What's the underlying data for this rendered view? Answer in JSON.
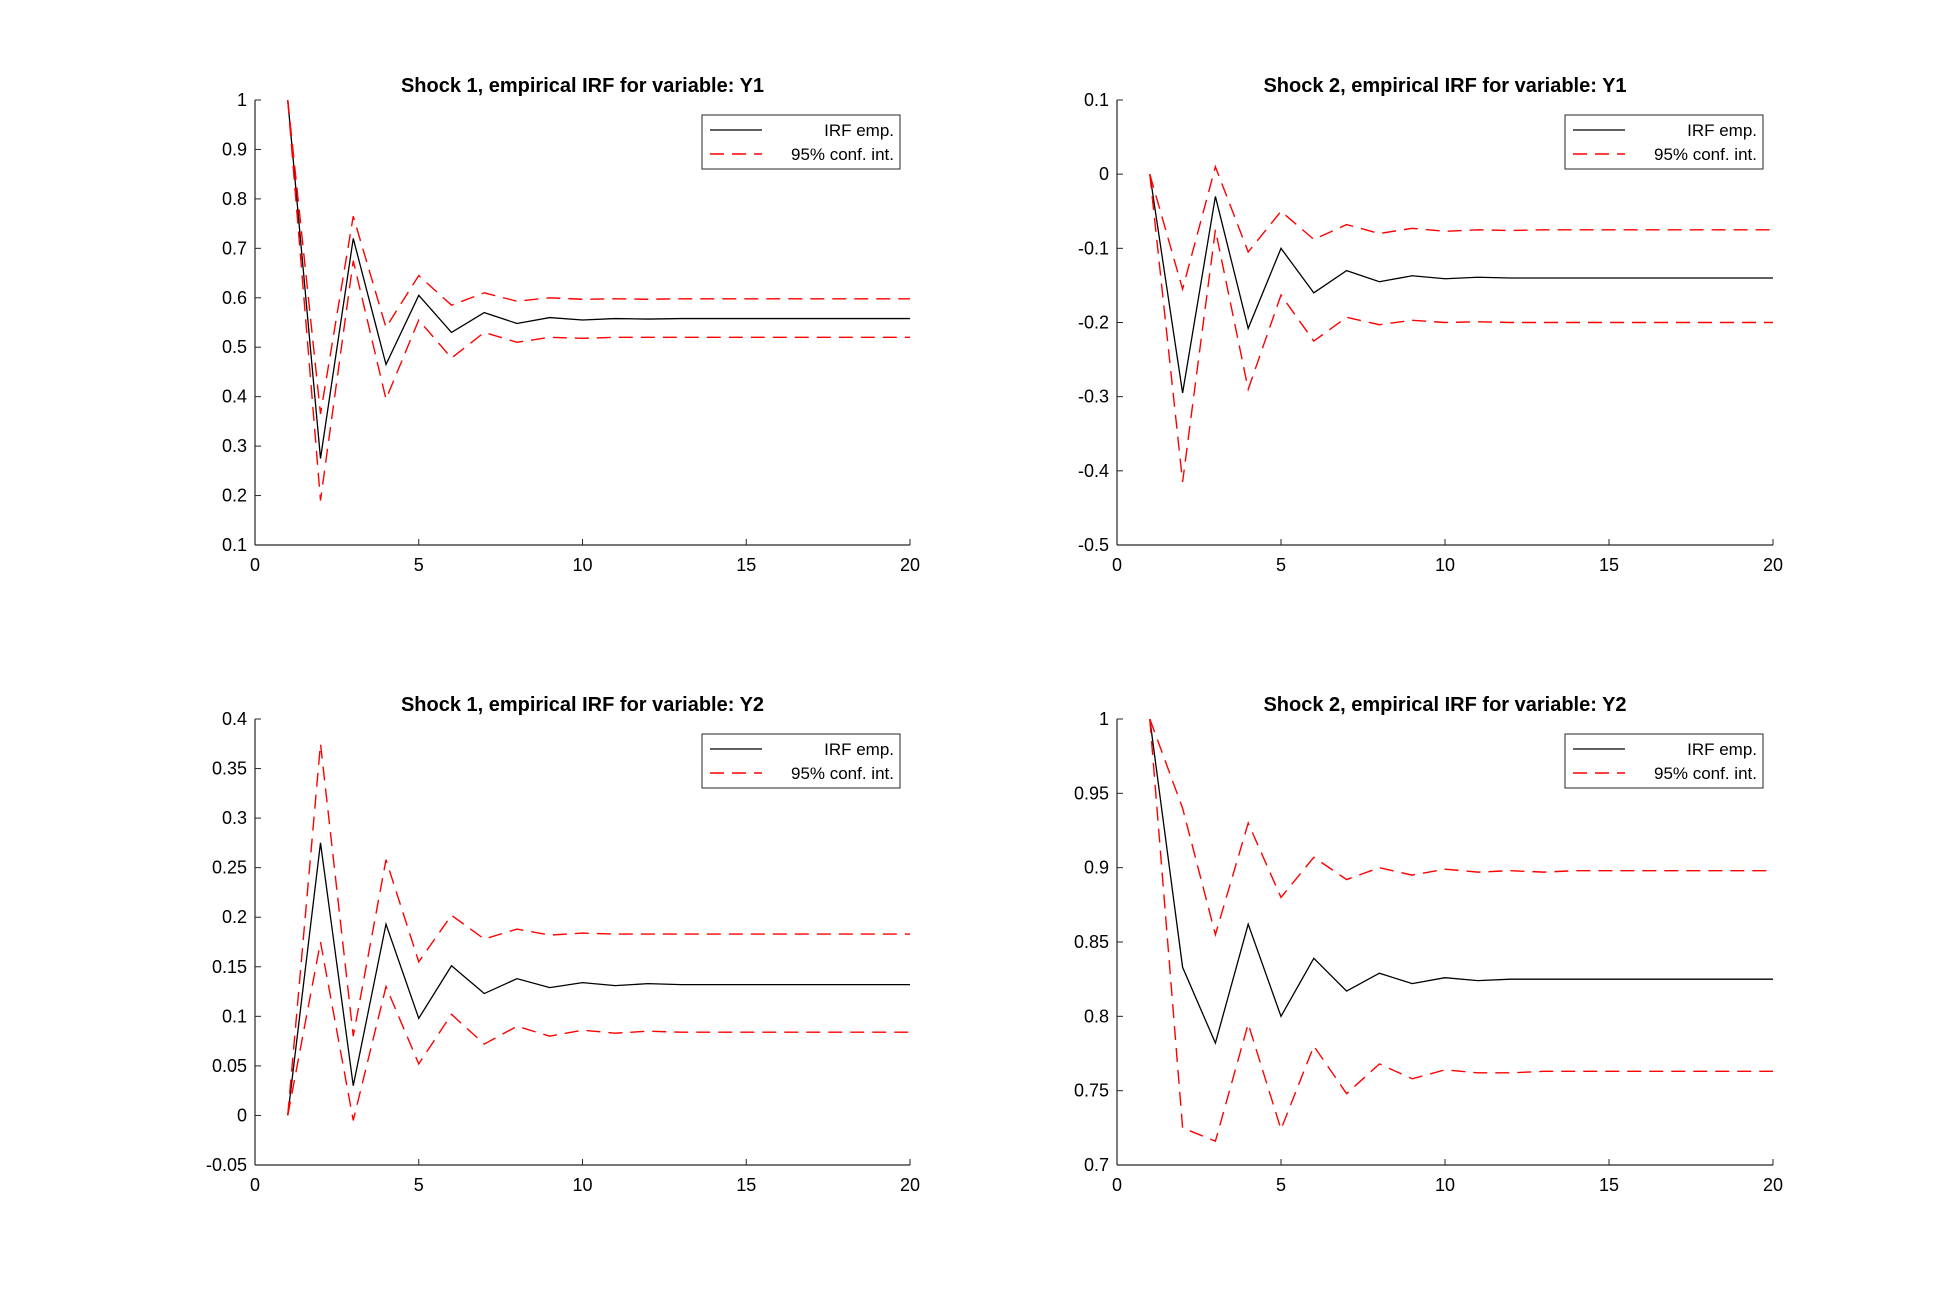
{
  "chart_data": [
    {
      "type": "line",
      "title": "Shock 1, empirical IRF for variable: Y1",
      "xlabel": "",
      "ylabel": "",
      "xlim": [
        0,
        20
      ],
      "ylim": [
        0.1,
        1
      ],
      "x_ticks": [
        "0",
        "5",
        "10",
        "15",
        "20"
      ],
      "y_ticks": [
        "0.1",
        "0.2",
        "0.3",
        "0.4",
        "0.5",
        "0.6",
        "0.7",
        "0.8",
        "0.9",
        "1"
      ],
      "legend": [
        "IRF emp.",
        "95% conf. int."
      ],
      "legend_position": "top-right",
      "grid": false,
      "x": [
        1,
        2,
        3,
        4,
        5,
        6,
        7,
        8,
        9,
        10,
        11,
        12,
        13,
        14,
        15,
        16,
        17,
        18,
        19,
        20
      ],
      "series": [
        {
          "name": "IRF emp.",
          "style": "solid",
          "color": "#000000",
          "values": [
            1.0,
            0.275,
            0.72,
            0.465,
            0.605,
            0.53,
            0.57,
            0.548,
            0.56,
            0.555,
            0.558,
            0.557,
            0.558,
            0.558,
            0.558,
            0.558,
            0.558,
            0.558,
            0.558,
            0.558
          ]
        },
        {
          "name": "95% conf. int.",
          "style": "dashed",
          "color": "#ff0000",
          "values": [
            1.0,
            0.365,
            0.765,
            0.54,
            0.645,
            0.585,
            0.61,
            0.593,
            0.6,
            0.597,
            0.598,
            0.597,
            0.598,
            0.598,
            0.598,
            0.598,
            0.598,
            0.598,
            0.598,
            0.598
          ]
        },
        {
          "name": "",
          "style": "dashed",
          "color": "#ff0000",
          "values": [
            1.0,
            0.19,
            0.675,
            0.395,
            0.555,
            0.478,
            0.53,
            0.51,
            0.52,
            0.518,
            0.52,
            0.52,
            0.52,
            0.52,
            0.52,
            0.52,
            0.52,
            0.52,
            0.52,
            0.52
          ]
        }
      ]
    },
    {
      "type": "line",
      "title": "Shock 2, empirical IRF for variable: Y1",
      "xlabel": "",
      "ylabel": "",
      "xlim": [
        0,
        20
      ],
      "ylim": [
        -0.5,
        0.1
      ],
      "x_ticks": [
        "0",
        "5",
        "10",
        "15",
        "20"
      ],
      "y_ticks": [
        "-0.5",
        "-0.4",
        "-0.3",
        "-0.2",
        "-0.1",
        "0",
        "0.1"
      ],
      "legend": [
        "IRF emp.",
        "95% conf. int."
      ],
      "legend_position": "top-right",
      "grid": false,
      "x": [
        1,
        2,
        3,
        4,
        5,
        6,
        7,
        8,
        9,
        10,
        11,
        12,
        13,
        14,
        15,
        16,
        17,
        18,
        19,
        20
      ],
      "series": [
        {
          "name": "IRF emp.",
          "style": "solid",
          "color": "#000000",
          "values": [
            0.0,
            -0.295,
            -0.03,
            -0.208,
            -0.1,
            -0.16,
            -0.13,
            -0.145,
            -0.137,
            -0.141,
            -0.139,
            -0.14,
            -0.14,
            -0.14,
            -0.14,
            -0.14,
            -0.14,
            -0.14,
            -0.14,
            -0.14
          ]
        },
        {
          "name": "95% conf. int.",
          "style": "dashed",
          "color": "#ff0000",
          "values": [
            0.0,
            -0.155,
            0.01,
            -0.105,
            -0.05,
            -0.088,
            -0.068,
            -0.08,
            -0.073,
            -0.077,
            -0.075,
            -0.076,
            -0.075,
            -0.075,
            -0.075,
            -0.075,
            -0.075,
            -0.075,
            -0.075,
            -0.075
          ]
        },
        {
          "name": "",
          "style": "dashed",
          "color": "#ff0000",
          "values": [
            0.0,
            -0.415,
            -0.075,
            -0.29,
            -0.163,
            -0.225,
            -0.193,
            -0.203,
            -0.197,
            -0.2,
            -0.199,
            -0.2,
            -0.2,
            -0.2,
            -0.2,
            -0.2,
            -0.2,
            -0.2,
            -0.2,
            -0.2
          ]
        }
      ]
    },
    {
      "type": "line",
      "title": "Shock 1, empirical IRF for variable: Y2",
      "xlabel": "",
      "ylabel": "",
      "xlim": [
        0,
        20
      ],
      "ylim": [
        -0.05,
        0.4
      ],
      "x_ticks": [
        "0",
        "5",
        "10",
        "15",
        "20"
      ],
      "y_ticks": [
        "-0.05",
        "0",
        "0.05",
        "0.1",
        "0.15",
        "0.2",
        "0.25",
        "0.3",
        "0.35",
        "0.4"
      ],
      "legend": [
        "IRF emp.",
        "95% conf. int."
      ],
      "legend_position": "top-right",
      "grid": false,
      "x": [
        1,
        2,
        3,
        4,
        5,
        6,
        7,
        8,
        9,
        10,
        11,
        12,
        13,
        14,
        15,
        16,
        17,
        18,
        19,
        20
      ],
      "series": [
        {
          "name": "IRF emp.",
          "style": "solid",
          "color": "#000000",
          "values": [
            0.0,
            0.275,
            0.03,
            0.193,
            0.098,
            0.151,
            0.123,
            0.138,
            0.129,
            0.134,
            0.131,
            0.133,
            0.132,
            0.132,
            0.132,
            0.132,
            0.132,
            0.132,
            0.132,
            0.132
          ]
        },
        {
          "name": "95% conf. int.",
          "style": "dashed",
          "color": "#ff0000",
          "values": [
            0.0,
            0.375,
            0.08,
            0.258,
            0.155,
            0.202,
            0.178,
            0.188,
            0.182,
            0.184,
            0.183,
            0.183,
            0.183,
            0.183,
            0.183,
            0.183,
            0.183,
            0.183,
            0.183,
            0.183
          ]
        },
        {
          "name": "",
          "style": "dashed",
          "color": "#ff0000",
          "values": [
            0.0,
            0.175,
            -0.005,
            0.13,
            0.052,
            0.102,
            0.072,
            0.09,
            0.08,
            0.086,
            0.083,
            0.085,
            0.084,
            0.084,
            0.084,
            0.084,
            0.084,
            0.084,
            0.084,
            0.084
          ]
        }
      ]
    },
    {
      "type": "line",
      "title": "Shock 2, empirical IRF for variable: Y2",
      "xlabel": "",
      "ylabel": "",
      "xlim": [
        0,
        20
      ],
      "ylim": [
        0.7,
        1
      ],
      "x_ticks": [
        "0",
        "5",
        "10",
        "15",
        "20"
      ],
      "y_ticks": [
        "0.7",
        "0.75",
        "0.8",
        "0.85",
        "0.9",
        "0.95",
        "1"
      ],
      "legend": [
        "IRF emp.",
        "95% conf. int."
      ],
      "legend_position": "top-right",
      "grid": false,
      "x": [
        1,
        2,
        3,
        4,
        5,
        6,
        7,
        8,
        9,
        10,
        11,
        12,
        13,
        14,
        15,
        16,
        17,
        18,
        19,
        20
      ],
      "series": [
        {
          "name": "IRF emp.",
          "style": "solid",
          "color": "#000000",
          "values": [
            1.0,
            0.833,
            0.782,
            0.862,
            0.8,
            0.839,
            0.817,
            0.829,
            0.822,
            0.826,
            0.824,
            0.825,
            0.825,
            0.825,
            0.825,
            0.825,
            0.825,
            0.825,
            0.825,
            0.825
          ]
        },
        {
          "name": "95% conf. int.",
          "style": "dashed",
          "color": "#ff0000",
          "values": [
            1.0,
            0.94,
            0.855,
            0.93,
            0.88,
            0.907,
            0.892,
            0.9,
            0.895,
            0.899,
            0.897,
            0.898,
            0.897,
            0.898,
            0.898,
            0.898,
            0.898,
            0.898,
            0.898,
            0.898
          ]
        },
        {
          "name": "",
          "style": "dashed",
          "color": "#ff0000",
          "values": [
            1.0,
            0.725,
            0.716,
            0.795,
            0.724,
            0.78,
            0.748,
            0.768,
            0.758,
            0.764,
            0.762,
            0.762,
            0.763,
            0.763,
            0.763,
            0.763,
            0.763,
            0.763,
            0.763,
            0.763
          ]
        }
      ]
    }
  ]
}
